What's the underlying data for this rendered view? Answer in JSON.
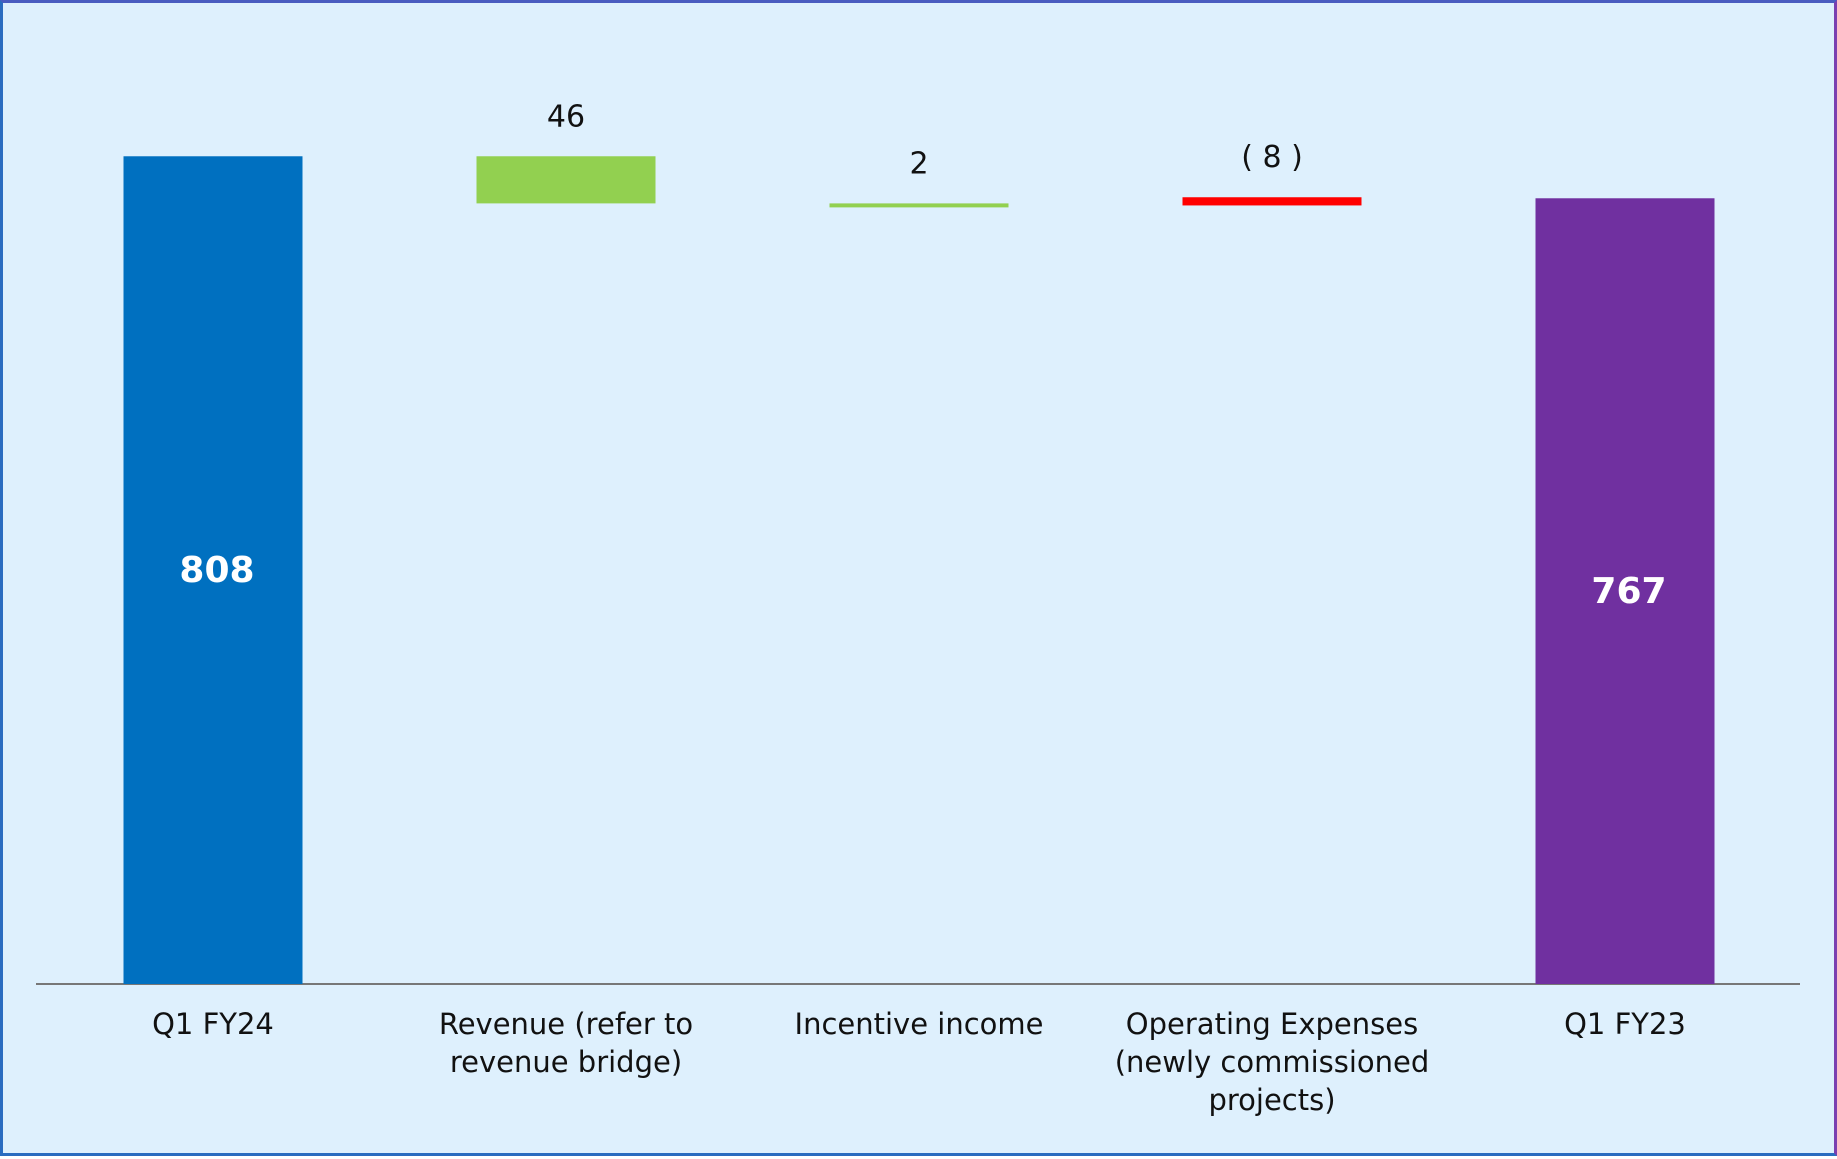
{
  "chart_data": {
    "type": "bar",
    "subtype": "waterfall",
    "categories": [
      [
        "Q1 FY24"
      ],
      [
        "Revenue (refer to",
        "revenue bridge)"
      ],
      [
        "Incentive income"
      ],
      [
        "Operating Expenses",
        "(newly commissioned",
        "projects)"
      ],
      [
        "Q1 FY23"
      ]
    ],
    "values": [
      808,
      46,
      2,
      -8,
      767
    ],
    "labels": [
      "808",
      "46",
      "2",
      "( 8 )",
      "767"
    ],
    "kinds": [
      "total",
      "delta",
      "delta",
      "delta",
      "total"
    ],
    "colors": [
      "#0070c0",
      "#92d050",
      "#92d050",
      "#ff0000",
      "#7030a0"
    ],
    "ylim": [
      0,
      860
    ],
    "grid": false,
    "legend": "none"
  }
}
